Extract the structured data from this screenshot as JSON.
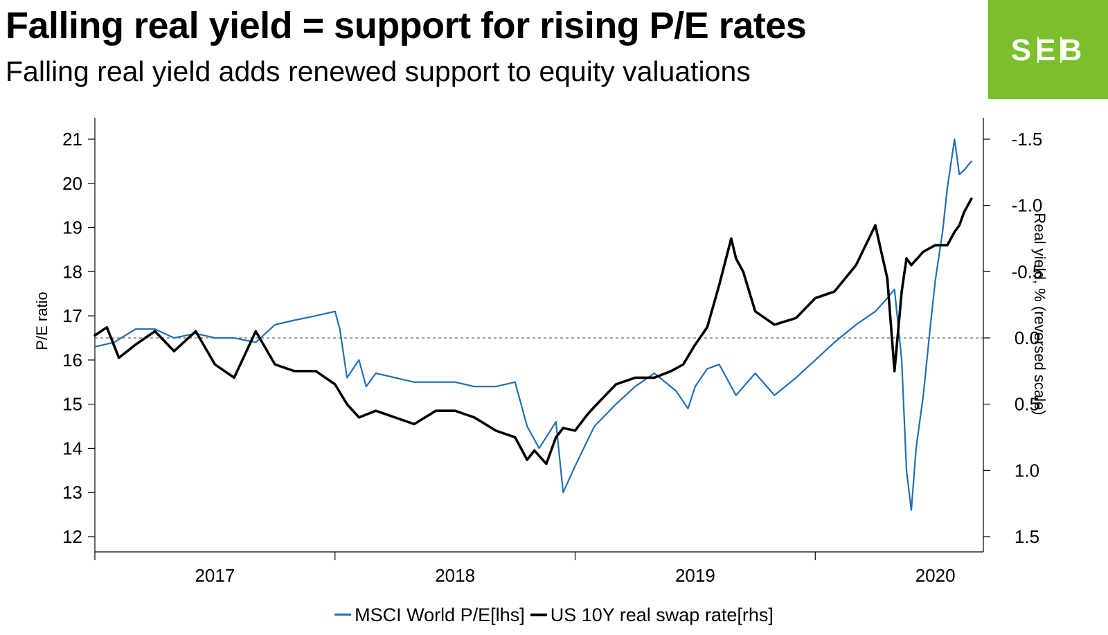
{
  "header": {
    "title": "Falling real yield = support for rising P/E rates",
    "subtitle": "Falling real yield adds renewed support to equity valuations"
  },
  "brand": {
    "logo_text": "SEB",
    "color": "#7bbf2e"
  },
  "colors": {
    "pe_line": "#1f6fb5",
    "yield_line": "#000000"
  },
  "chart_data": {
    "type": "line",
    "title": "Falling real yield = support for rising P/E rates",
    "subtitle": "Falling real yield adds renewed support to equity valuations",
    "xlabel": "",
    "ylabel": "P/E ratio",
    "y2label": "Real yield, % (reversed scale)",
    "xlim": [
      2016.5,
      2020.2
    ],
    "ylim": [
      12,
      21
    ],
    "y2lim": [
      1.5,
      -1.5
    ],
    "y2_reversed": true,
    "x_ticks": [
      "2017",
      "2018",
      "2019",
      "2020"
    ],
    "y_ticks": [
      "12",
      "13",
      "14",
      "15",
      "16",
      "17",
      "18",
      "19",
      "20",
      "21"
    ],
    "y2_ticks": [
      "1.5",
      "1.0",
      "0.5",
      "0.0",
      "-0.5",
      "-1.0",
      "-1.5"
    ],
    "reference_line": {
      "axis": "y2",
      "value": 0.0,
      "style": "dashed"
    },
    "legend_position": "bottom-center",
    "legend": [
      "MSCI World P/E[lhs]",
      "US 10Y real swap rate[rhs]"
    ],
    "series": [
      {
        "name": "MSCI World P/E[lhs]",
        "axis": "left",
        "x": [
          2016.5,
          2016.58,
          2016.67,
          2016.75,
          2016.83,
          2016.92,
          2017.0,
          2017.08,
          2017.17,
          2017.25,
          2017.33,
          2017.42,
          2017.5,
          2017.52,
          2017.55,
          2017.6,
          2017.63,
          2017.67,
          2017.75,
          2017.83,
          2017.92,
          2018.0,
          2018.08,
          2018.17,
          2018.25,
          2018.3,
          2018.35,
          2018.42,
          2018.45,
          2018.5,
          2018.58,
          2018.67,
          2018.75,
          2018.83,
          2018.92,
          2018.97,
          2019.0,
          2019.05,
          2019.1,
          2019.17,
          2019.25,
          2019.33,
          2019.42,
          2019.5,
          2019.58,
          2019.67,
          2019.75,
          2019.8,
          2019.83,
          2019.86,
          2019.88,
          2019.9,
          2019.92,
          2019.95,
          2019.98,
          2020.0,
          2020.03,
          2020.05,
          2020.08,
          2020.1,
          2020.12,
          2020.15
        ],
        "values": [
          16.3,
          16.4,
          16.7,
          16.7,
          16.5,
          16.6,
          16.5,
          16.5,
          16.4,
          16.8,
          16.9,
          17.0,
          17.1,
          16.7,
          15.6,
          16.0,
          15.4,
          15.7,
          15.6,
          15.5,
          15.5,
          15.5,
          15.4,
          15.4,
          15.5,
          14.5,
          14.0,
          14.6,
          13.0,
          13.6,
          14.5,
          15.0,
          15.4,
          15.7,
          15.3,
          14.9,
          15.4,
          15.8,
          15.9,
          15.2,
          15.7,
          15.2,
          15.6,
          16.0,
          16.4,
          16.8,
          17.1,
          17.4,
          17.6,
          16.0,
          13.5,
          12.6,
          14.0,
          15.2,
          16.8,
          17.8,
          18.9,
          19.9,
          21.0,
          20.2,
          20.3,
          20.5
        ]
      },
      {
        "name": "US 10Y real swap rate[rhs]",
        "axis": "right",
        "x": [
          2016.5,
          2016.55,
          2016.6,
          2016.67,
          2016.75,
          2016.83,
          2016.92,
          2017.0,
          2017.08,
          2017.17,
          2017.25,
          2017.33,
          2017.42,
          2017.5,
          2017.55,
          2017.6,
          2017.67,
          2017.75,
          2017.83,
          2017.92,
          2018.0,
          2018.08,
          2018.17,
          2018.25,
          2018.3,
          2018.33,
          2018.38,
          2018.42,
          2018.45,
          2018.5,
          2018.55,
          2018.58,
          2018.67,
          2018.75,
          2018.83,
          2018.9,
          2018.95,
          2019.0,
          2019.05,
          2019.1,
          2019.15,
          2019.17,
          2019.2,
          2019.25,
          2019.33,
          2019.42,
          2019.5,
          2019.58,
          2019.67,
          2019.75,
          2019.8,
          2019.83,
          2019.86,
          2019.88,
          2019.9,
          2019.95,
          2020.0,
          2020.05,
          2020.08,
          2020.1,
          2020.12,
          2020.15
        ],
        "values": [
          -0.02,
          -0.08,
          0.15,
          0.05,
          -0.05,
          0.1,
          -0.05,
          0.2,
          0.3,
          -0.05,
          0.2,
          0.25,
          0.25,
          0.35,
          0.5,
          0.6,
          0.55,
          0.6,
          0.65,
          0.55,
          0.55,
          0.6,
          0.7,
          0.75,
          0.92,
          0.85,
          0.95,
          0.75,
          0.68,
          0.7,
          0.58,
          0.52,
          0.35,
          0.3,
          0.3,
          0.25,
          0.2,
          0.05,
          -0.08,
          -0.4,
          -0.75,
          -0.6,
          -0.5,
          -0.2,
          -0.1,
          -0.15,
          -0.3,
          -0.35,
          -0.55,
          -0.85,
          -0.45,
          0.25,
          -0.35,
          -0.6,
          -0.55,
          -0.65,
          -0.7,
          -0.7,
          -0.8,
          -0.85,
          -0.95,
          -1.05
        ]
      }
    ]
  }
}
